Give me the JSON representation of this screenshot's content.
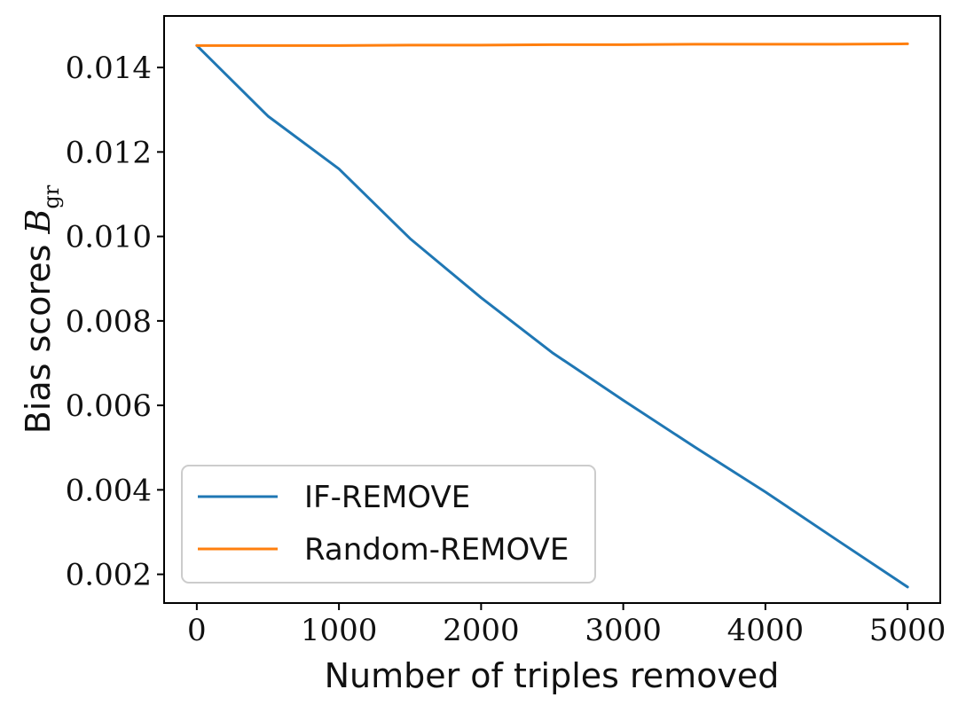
{
  "chart_data": {
    "type": "line",
    "title": "",
    "xlabel": "Number of triples removed",
    "ylabel": {
      "text": "Bias scores ",
      "symbol": "B",
      "subscript": "gr"
    },
    "xlim": [
      -230,
      5230
    ],
    "ylim": [
      0.00132,
      0.01522
    ],
    "xticks": [
      0,
      1000,
      2000,
      3000,
      4000,
      5000
    ],
    "xtick_labels": [
      "0",
      "1000",
      "2000",
      "3000",
      "4000",
      "5000"
    ],
    "yticks": [
      0.002,
      0.004,
      0.006,
      0.008,
      0.01,
      0.012,
      0.014
    ],
    "ytick_labels": [
      "0.002",
      "0.004",
      "0.006",
      "0.008",
      "0.010",
      "0.012",
      "0.014"
    ],
    "grid": false,
    "legend_position": "lower-left",
    "series": [
      {
        "name": "IF-REMOVE",
        "color": "#1f77b4",
        "x": [
          0,
          500,
          1000,
          1500,
          2000,
          2500,
          3000,
          3500,
          4000,
          4500,
          5000
        ],
        "y": [
          0.01452,
          0.01285,
          0.0116,
          0.00995,
          0.00855,
          0.00725,
          0.00612,
          0.00502,
          0.00395,
          0.00282,
          0.0017
        ]
      },
      {
        "name": "Random-REMOVE",
        "color": "#ff7f0e",
        "x": [
          0,
          500,
          1000,
          1500,
          2000,
          2500,
          3000,
          3500,
          4000,
          4500,
          5000
        ],
        "y": [
          0.01452,
          0.01452,
          0.01452,
          0.01453,
          0.01453,
          0.01454,
          0.01454,
          0.01455,
          0.01455,
          0.01455,
          0.01456
        ]
      }
    ]
  }
}
